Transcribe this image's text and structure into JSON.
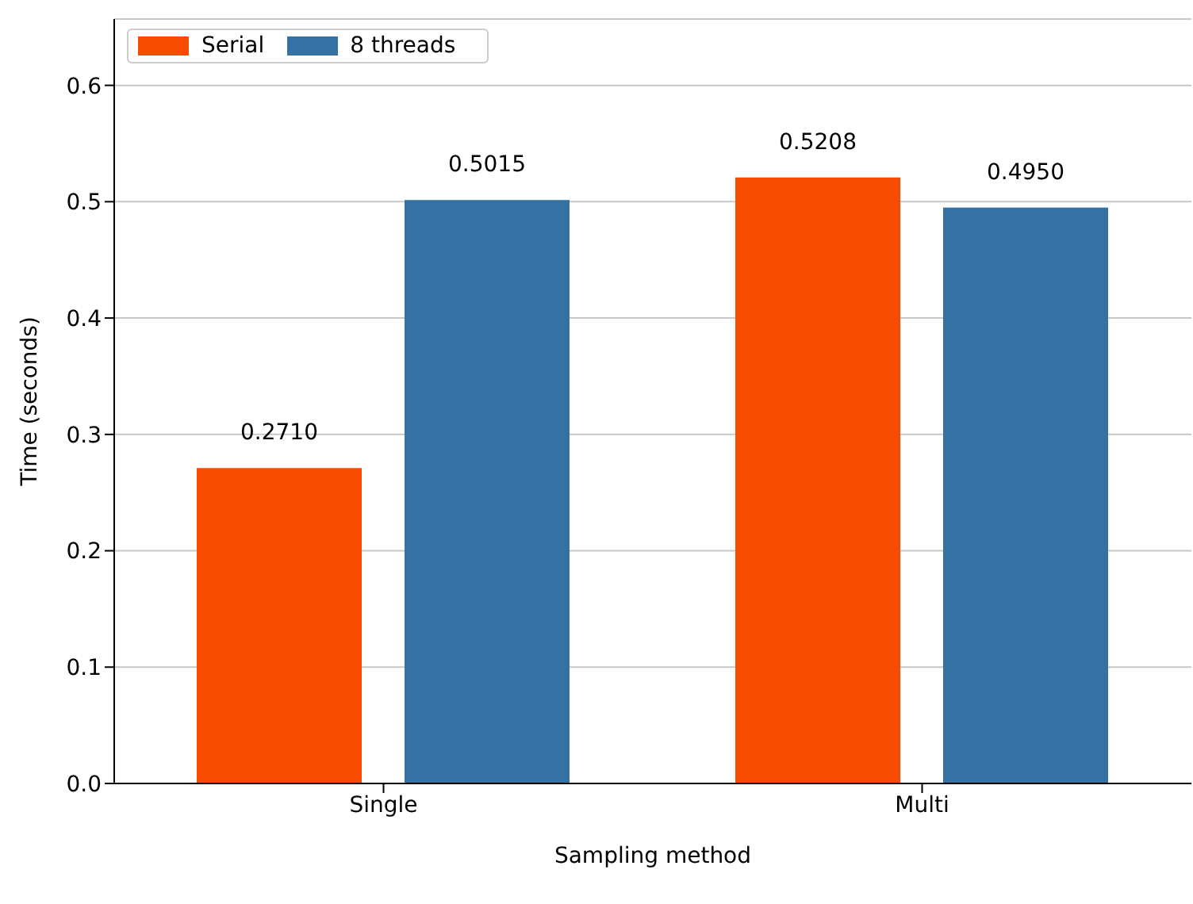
{
  "chart_data": {
    "type": "bar",
    "xlabel": "Sampling method",
    "ylabel": "Time (seconds)",
    "categories": [
      "Single",
      "Multi"
    ],
    "series": [
      {
        "name": "Serial",
        "color": "#f74b00",
        "values": [
          0.271,
          0.5208
        ],
        "value_labels": [
          "0.2710",
          "0.5208"
        ]
      },
      {
        "name": "8 threads",
        "color": "#3572a3",
        "values": [
          0.5015,
          0.495
        ],
        "value_labels": [
          "0.5015",
          "0.4950"
        ]
      }
    ],
    "ylim": [
      0,
      0.657
    ],
    "yticks": [
      {
        "value": 0,
        "label": "0.0"
      },
      {
        "value": 0.1,
        "label": "0.1"
      },
      {
        "value": 0.2,
        "label": "0.2"
      },
      {
        "value": 0.3,
        "label": "0.3"
      },
      {
        "value": 0.4,
        "label": "0.4"
      },
      {
        "value": 0.5,
        "label": "0.5"
      },
      {
        "value": 0.6,
        "label": "0.6"
      }
    ],
    "grid": "y",
    "legend": "top left"
  }
}
